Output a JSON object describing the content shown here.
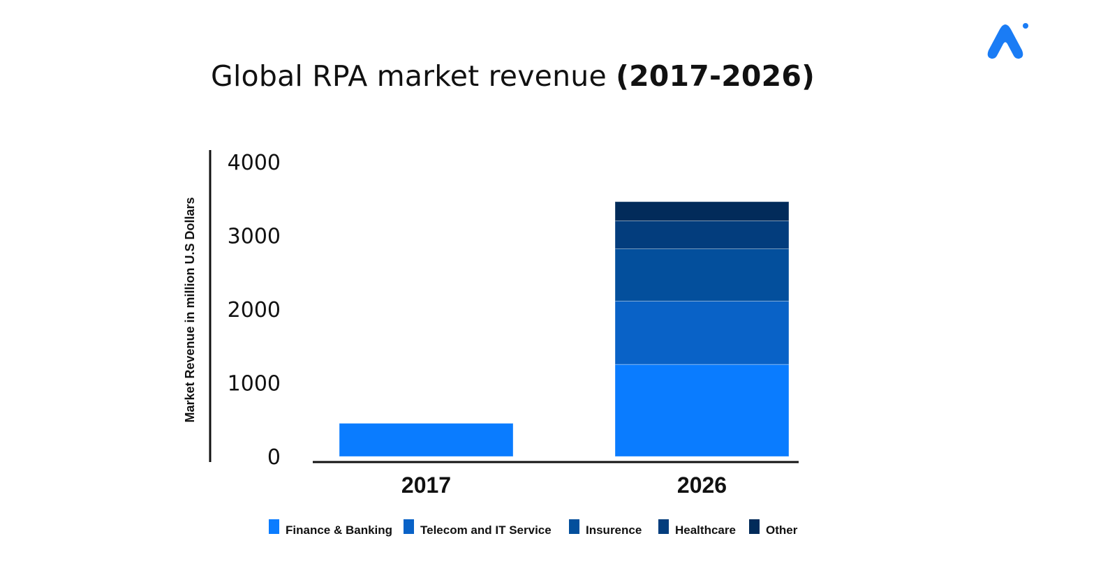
{
  "title": {
    "regular": "Global RPA market revenue ",
    "bold": "(2017-2026)"
  },
  "logo_icon": "brand-logo-icon",
  "colors": {
    "finance": "#0a7cff",
    "telecom": "#0962c7",
    "insurance": "#034f9c",
    "healthcare": "#033d7d",
    "other": "#022b5a",
    "axis": "#111111",
    "brand": "#1a7cf5"
  },
  "chart_data": {
    "type": "bar",
    "stacked": true,
    "title": "Global RPA market revenue (2017-2026)",
    "xlabel": "",
    "ylabel": "Market Revenue in million  U.S Dollars",
    "ylim": [
      0,
      4000
    ],
    "yticks": [
      0,
      1000,
      2000,
      3000,
      4000
    ],
    "categories": [
      "2017",
      "2026"
    ],
    "series": [
      {
        "name": "Finance & Banking",
        "color": "#0a7cff",
        "values": [
          450,
          1250
        ]
      },
      {
        "name": "Telecom and IT Service",
        "color": "#0962c7",
        "values": [
          0,
          860
        ]
      },
      {
        "name": "Insurence",
        "color": "#034f9c",
        "values": [
          0,
          710
        ]
      },
      {
        "name": "Healthcare",
        "color": "#033d7d",
        "values": [
          0,
          380
        ]
      },
      {
        "name": "Other",
        "color": "#022b5a",
        "values": [
          0,
          260
        ]
      }
    ]
  }
}
